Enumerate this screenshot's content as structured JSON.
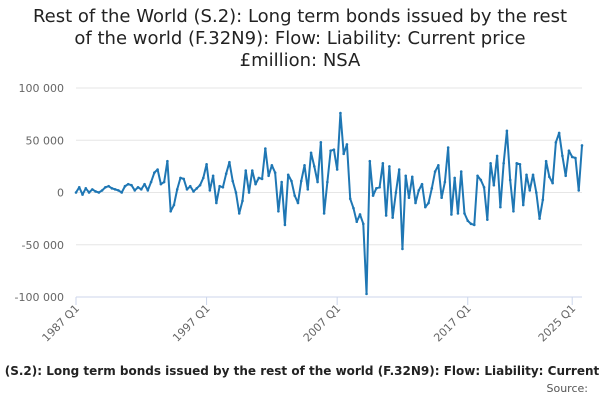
{
  "chart_data": {
    "type": "line",
    "title_lines": [
      "Rest of the World (S.2): Long term bonds issued by the rest",
      "of the world (F.32N9): Flow: Liability: Current price",
      "£million: NSA"
    ],
    "legend_text": "(S.2): Long term bonds issued by the rest of the world (F.32N9): Flow: Liability: Current",
    "source_label": "Source:",
    "ylim": [
      -100000,
      100000
    ],
    "yticks": [
      {
        "value": 100000,
        "label": "100 000"
      },
      {
        "value": 50000,
        "label": "50 000"
      },
      {
        "value": 0,
        "label": "0"
      },
      {
        "value": -50000,
        "label": "-50 000"
      },
      {
        "value": -100000,
        "label": "-100 000"
      }
    ],
    "xticks": [
      {
        "index": 0,
        "label": "1987 Q1"
      },
      {
        "index": 40,
        "label": "1997 Q1"
      },
      {
        "index": 80,
        "label": "2007 Q1"
      },
      {
        "index": 120,
        "label": "2017 Q1"
      },
      {
        "index": 152,
        "label": "2025 Q1"
      }
    ],
    "grid": true,
    "series": [
      {
        "color": "#1f77b4",
        "values": [
          0,
          5000,
          -2000,
          4000,
          0,
          3000,
          1000,
          0,
          2000,
          5000,
          6000,
          4000,
          3000,
          2000,
          0,
          6000,
          8000,
          7000,
          2000,
          5000,
          3000,
          8000,
          2000,
          10000,
          19000,
          22000,
          8000,
          10000,
          30000,
          -18000,
          -12000,
          3000,
          14000,
          13000,
          3000,
          6000,
          1000,
          4000,
          7000,
          14000,
          27000,
          2000,
          16000,
          -10000,
          6000,
          5000,
          18000,
          29000,
          11000,
          0,
          -20000,
          -8000,
          21000,
          0,
          21000,
          8000,
          14000,
          13000,
          42000,
          16000,
          26000,
          19000,
          -18000,
          10000,
          -31000,
          17000,
          11000,
          -3000,
          -10000,
          11000,
          26000,
          3000,
          38000,
          25000,
          10000,
          48000,
          -20000,
          10000,
          40000,
          41000,
          22000,
          76000,
          37000,
          46000,
          -6000,
          -15000,
          -28000,
          -21000,
          -30000,
          -97000,
          30000,
          -3000,
          4000,
          5000,
          28000,
          -22000,
          25000,
          -24000,
          0,
          22000,
          -54000,
          16000,
          -5000,
          15000,
          -10000,
          2000,
          8000,
          -14000,
          -10000,
          4000,
          20000,
          26000,
          -5000,
          10000,
          43000,
          -21000,
          14000,
          -20000,
          20000,
          -20000,
          -27000,
          -30000,
          -31000,
          16000,
          12000,
          5000,
          -26000,
          28000,
          7000,
          35000,
          -14000,
          28000,
          59000,
          12000,
          -18000,
          28000,
          27000,
          -12000,
          17000,
          2000,
          17000,
          0,
          -25000,
          -7000,
          30000,
          15000,
          9000,
          48000,
          57000,
          35000,
          16000,
          40000,
          34000,
          33000,
          2000,
          45000
        ]
      }
    ]
  }
}
